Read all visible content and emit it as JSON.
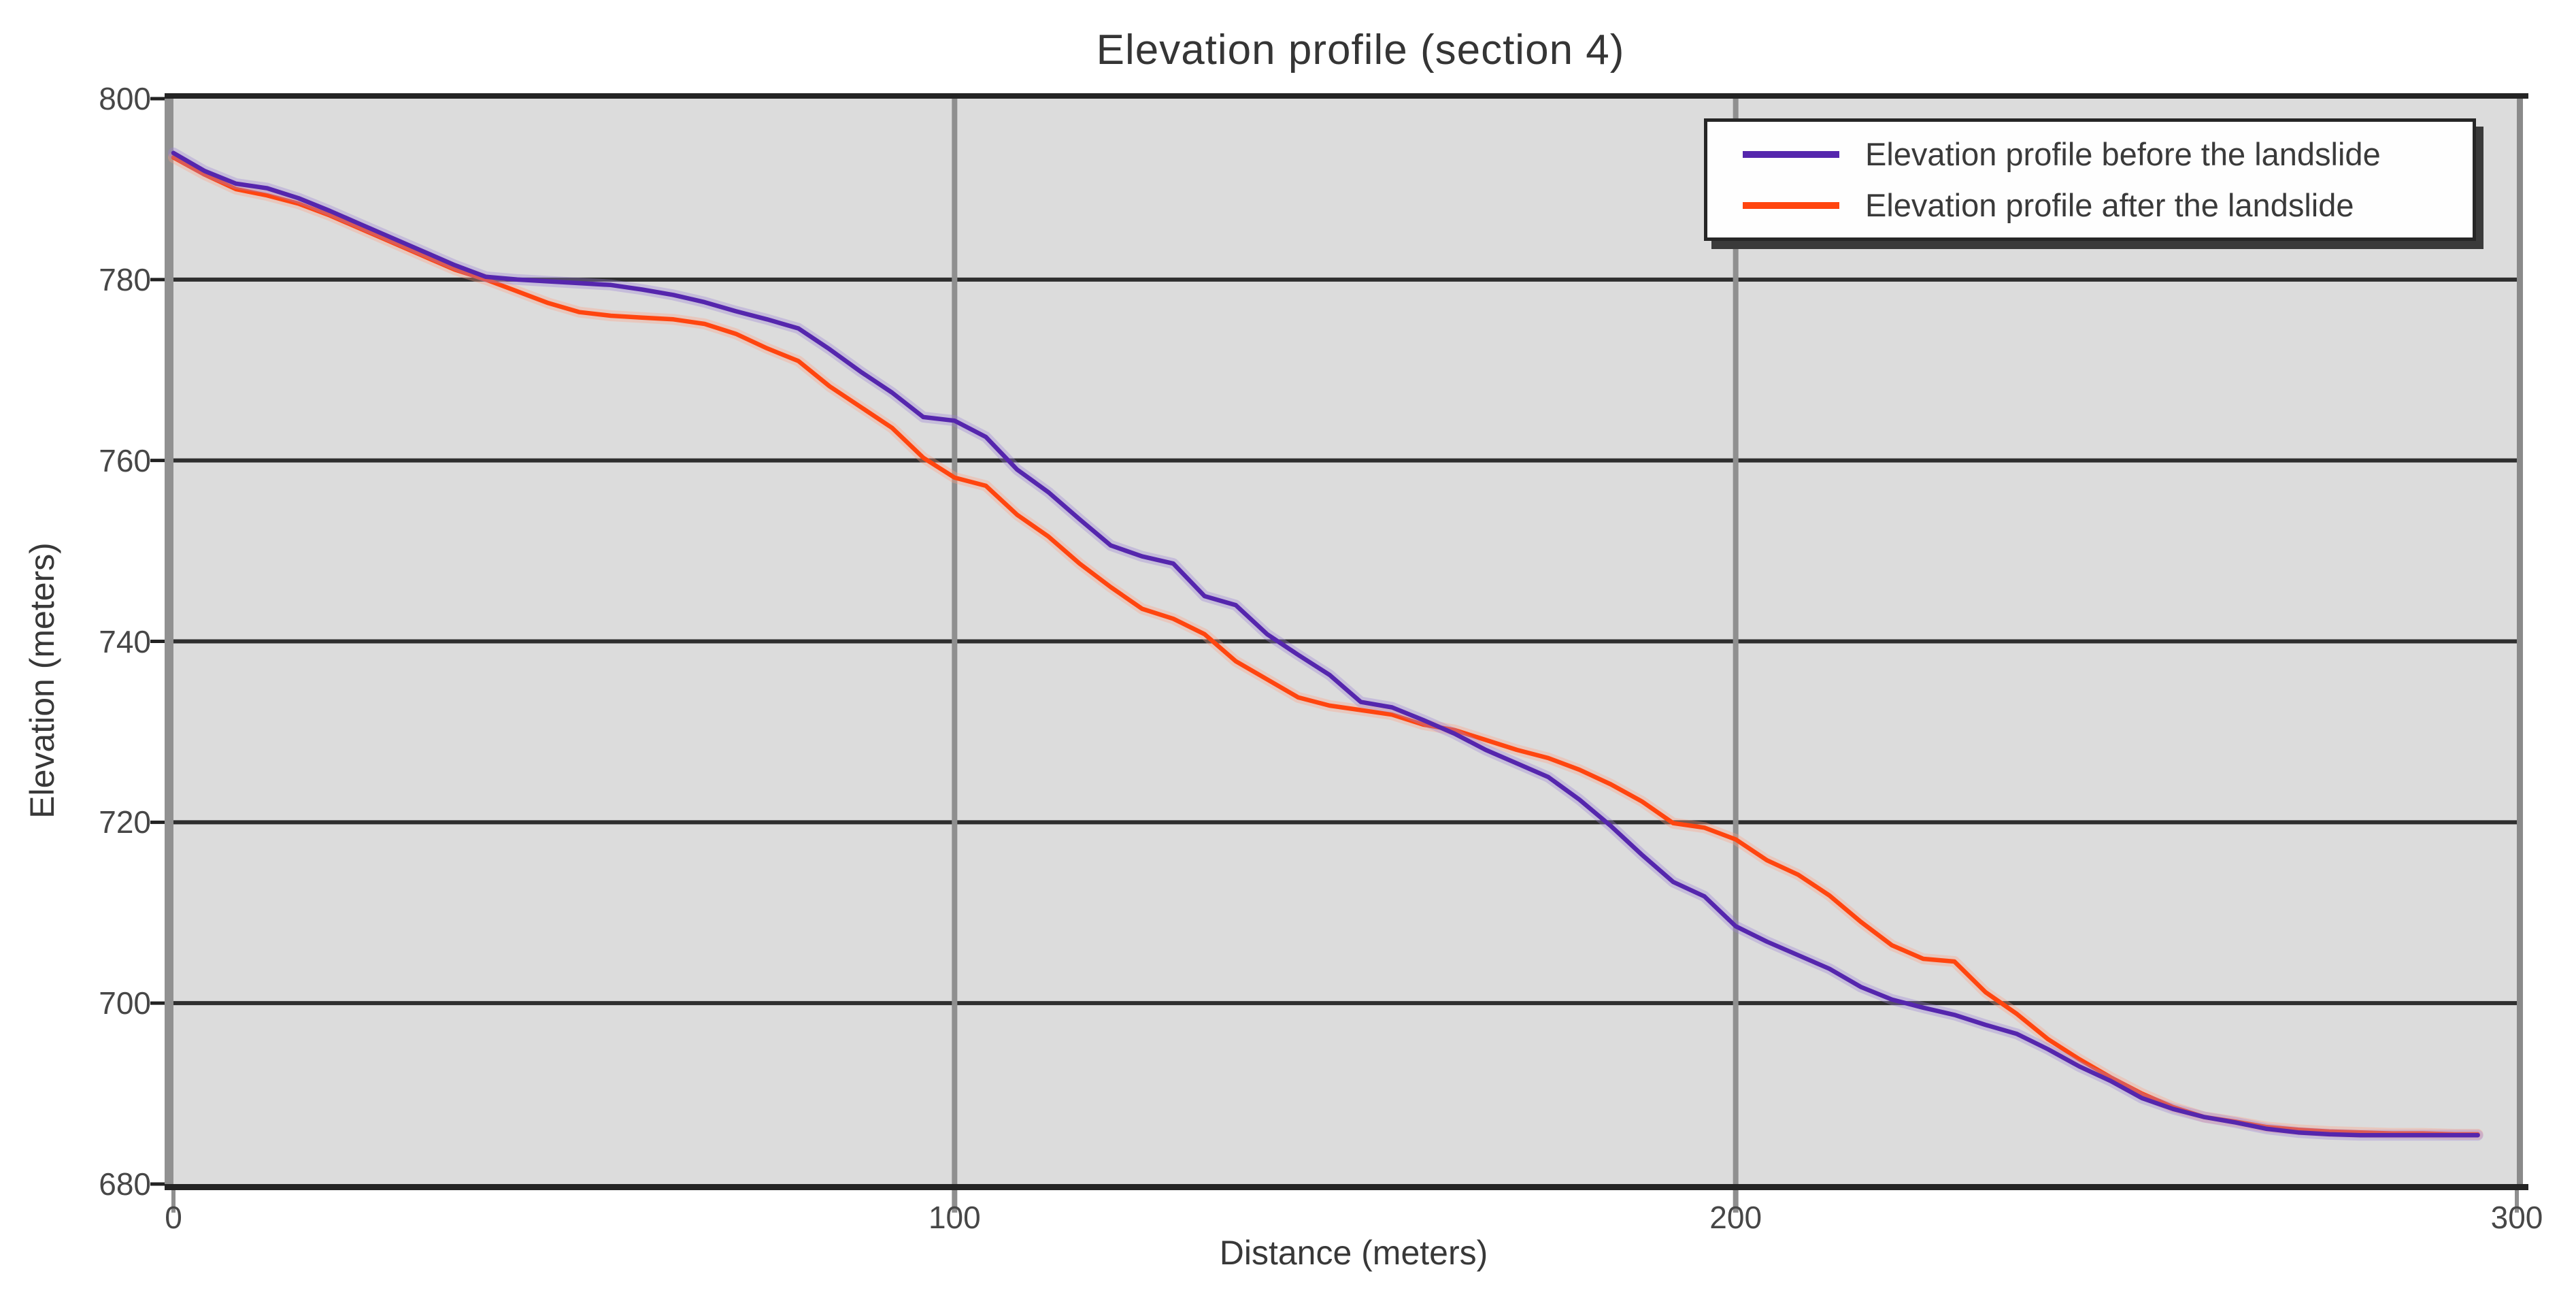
{
  "title": "Elevation profile (section 4)",
  "axes": {
    "x_title": "Distance (meters)",
    "y_title": "Elevation (meters)"
  },
  "legend": {
    "position": "top-right",
    "items": [
      {
        "label": "Elevation profile before the landslide",
        "color": "#5526ad"
      },
      {
        "label": "Elevation profile after the landslide",
        "color": "#ff450f"
      }
    ]
  },
  "colors": {
    "figure_bg": "#ffffff",
    "plot_bg": "#dcdcdc",
    "grid_horizontal": "#2e2e2e",
    "grid_vertical": "#8f8f8f",
    "border_top_bottom": "#242424",
    "axis_band_left": "#919191",
    "border_right": "#8a8a8a",
    "tick_dash": "#222222",
    "glow_before": "#9b82d8",
    "glow_after": "#ffa183"
  },
  "chart_data": {
    "type": "line",
    "title": "Elevation profile (section 4)",
    "xlabel": "Distance (meters)",
    "ylabel": "Elevation (meters)",
    "xlim": [
      0,
      300
    ],
    "ylim": [
      680,
      800
    ],
    "xticks": [
      0,
      100,
      200,
      300
    ],
    "yticks": [
      680,
      700,
      720,
      740,
      760,
      780,
      800
    ],
    "grid": "horizontal dark lines every 20 m elevation; vertical gray lines at 100 m and 200 m",
    "legend_position": "top-right",
    "x": [
      0,
      4,
      8,
      12,
      16,
      20,
      24,
      28,
      32,
      36,
      40,
      44,
      48,
      52,
      56,
      60,
      64,
      68,
      72,
      76,
      80,
      84,
      88,
      92,
      96,
      100,
      104,
      108,
      112,
      116,
      120,
      124,
      128,
      132,
      136,
      140,
      144,
      148,
      152,
      156,
      160,
      164,
      168,
      172,
      176,
      180,
      184,
      188,
      192,
      196,
      200,
      204,
      208,
      212,
      216,
      220,
      224,
      228,
      232,
      236,
      240,
      244,
      248,
      252,
      256,
      260,
      264,
      268,
      272,
      276,
      280,
      284,
      288,
      292,
      295
    ],
    "series": [
      {
        "name": "Elevation profile before the landslide",
        "color": "#5526ad",
        "values": [
          794,
          792,
          790.6,
          790.1,
          789,
          787.6,
          786.1,
          784.6,
          783.1,
          781.6,
          780.3,
          780,
          779.8,
          779.6,
          779.4,
          778.9,
          778.3,
          777.5,
          776.5,
          775.6,
          774.6,
          772.3,
          769.8,
          767.5,
          764.8,
          764.4,
          762.6,
          759,
          756.5,
          753.5,
          750.6,
          749.4,
          748.6,
          745,
          744,
          740.8,
          738.5,
          736.3,
          733.3,
          732.7,
          731.3,
          729.8,
          728,
          726.5,
          725,
          722.5,
          719.6,
          716.4,
          713.4,
          711.8,
          708.5,
          706.8,
          705.3,
          703.8,
          701.8,
          700.4,
          699.5,
          698.7,
          697.6,
          696.6,
          694.9,
          693,
          691.4,
          689.5,
          688.3,
          687.4,
          686.8,
          686.1,
          685.7,
          685.5,
          685.4,
          685.4,
          685.4,
          685.4,
          685.4
        ]
      },
      {
        "name": "Elevation profile after the landslide",
        "color": "#ff450f",
        "values": [
          793.5,
          791.6,
          790,
          789.3,
          788.4,
          787.1,
          785.6,
          784.1,
          782.6,
          781.1,
          780,
          778.7,
          777.4,
          776.4,
          776,
          775.8,
          775.6,
          775.1,
          774,
          772.4,
          771,
          768.2,
          765.9,
          763.6,
          760.3,
          758.1,
          757.2,
          754,
          751.6,
          748.6,
          746,
          743.6,
          742.5,
          740.8,
          737.8,
          735.8,
          733.8,
          732.9,
          732.4,
          731.9,
          730.8,
          730.2,
          729.1,
          728,
          727.1,
          725.8,
          724.2,
          722.3,
          719.9,
          719.4,
          718.1,
          715.8,
          714.2,
          711.9,
          709,
          706.4,
          704.9,
          704.6,
          701.2,
          698.8,
          696,
          693.8,
          691.8,
          690,
          688.5,
          687.4,
          686.9,
          686.3,
          686,
          685.8,
          685.7,
          685.6,
          685.6,
          685.5,
          685.5
        ]
      }
    ]
  }
}
